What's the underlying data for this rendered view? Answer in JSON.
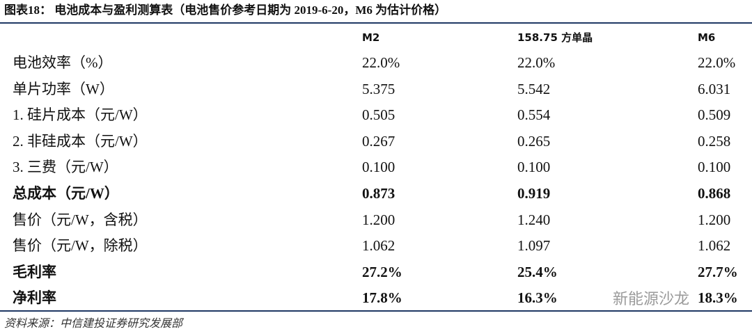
{
  "header": {
    "title": "图表18： 电池成本与盈利测算表（电池售价参考日期为 2019-6-20，M6 为估计价格）"
  },
  "table": {
    "columns": [
      "M2",
      "158.75 方单晶",
      "M6"
    ],
    "rows": [
      {
        "label": "电池效率（%）",
        "cells": [
          "22.0%",
          "22.0%",
          "22.0%"
        ]
      },
      {
        "label": "单片功率（W）",
        "cells": [
          "5.375",
          "5.542",
          "6.031"
        ]
      },
      {
        "label": "1. 硅片成本（元/W）",
        "cells": [
          "0.505",
          "0.554",
          "0.509"
        ]
      },
      {
        "label": "2. 非硅成本（元/W）",
        "cells": [
          "0.267",
          "0.265",
          "0.258"
        ]
      },
      {
        "label": "3. 三费（元/W）",
        "cells": [
          "0.100",
          "0.100",
          "0.100"
        ]
      },
      {
        "label": "总成本（元/W）",
        "cells": [
          "0.873",
          "0.919",
          "0.868"
        ],
        "bold": true
      },
      {
        "label": "售价（元/W，含税）",
        "cells": [
          "1.200",
          "1.240",
          "1.200"
        ]
      },
      {
        "label": "售价（元/W，除税）",
        "cells": [
          "1.062",
          "1.097",
          "1.062"
        ]
      },
      {
        "label": "毛利率",
        "cells": [
          "27.2%",
          "25.4%",
          "27.7%"
        ],
        "bold": true
      },
      {
        "label": "净利率",
        "cells": [
          "17.8%",
          "16.3%",
          "18.3%"
        ],
        "bold": true
      }
    ]
  },
  "source": "资料来源：中信建投证券研究发展部",
  "watermark": "新能源沙龙"
}
